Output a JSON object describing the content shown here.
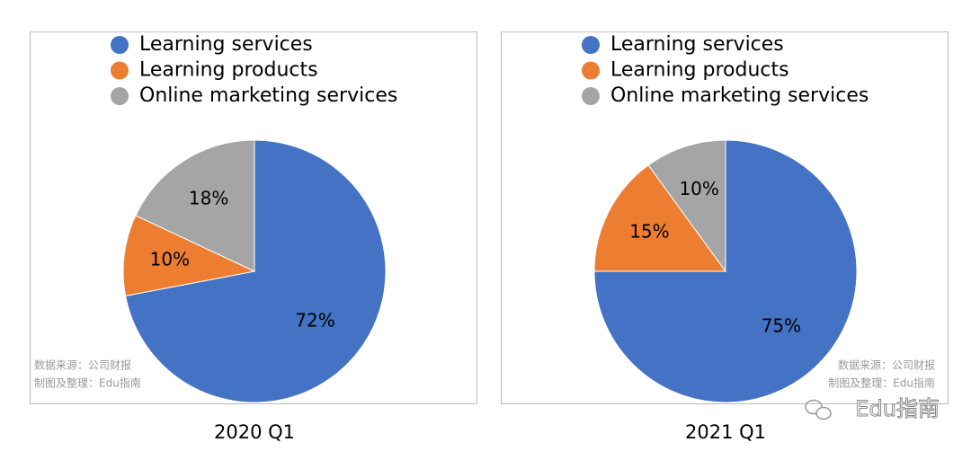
{
  "chart_data": [
    {
      "type": "pie",
      "title": "2020 Q1",
      "categories": [
        "Learning services",
        "Learning products",
        "Online marketing services"
      ],
      "values": [
        72,
        10,
        18
      ],
      "value_labels": [
        "72%",
        "10%",
        "18%"
      ],
      "colors": [
        "#4472c4",
        "#ed7d31",
        "#a5a5a5"
      ],
      "source": "数据来源：公司财报",
      "credit": "制图及整理：Edu指南"
    },
    {
      "type": "pie",
      "title": "2021 Q1",
      "categories": [
        "Learning services",
        "Learning products",
        "Online marketing services"
      ],
      "values": [
        75,
        15,
        10
      ],
      "value_labels": [
        "75%",
        "15%",
        "10%"
      ],
      "colors": [
        "#4472c4",
        "#ed7d31",
        "#a5a5a5"
      ],
      "source": "数据来源：公司财报",
      "credit": "制图及整理：Edu指南"
    }
  ],
  "watermark": "Edu指南"
}
